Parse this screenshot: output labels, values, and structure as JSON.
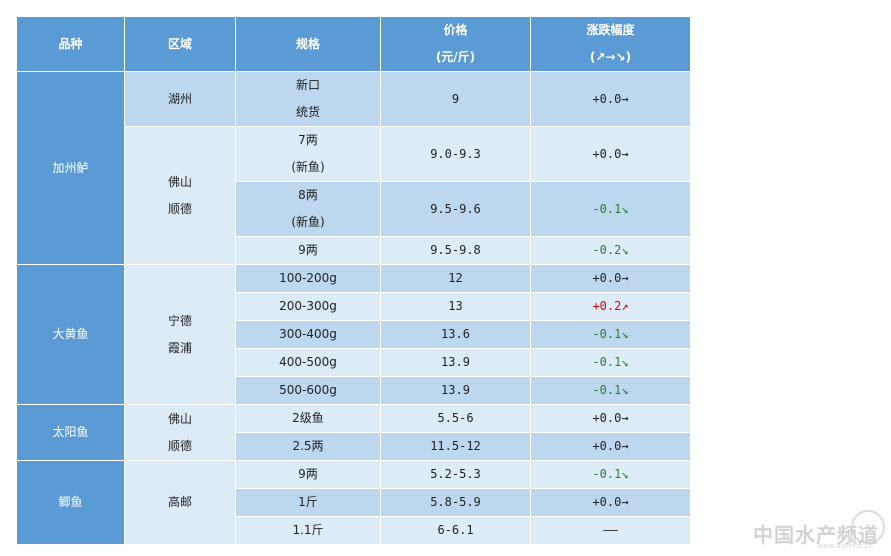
{
  "header": {
    "col1": "品种",
    "col2": "区域",
    "col3": "规格",
    "col4_line1": "价格",
    "col4_line2": "(元/斤)",
    "col5_line1": "涨跌幅度",
    "col5_line2": "(↗→↘)"
  },
  "groups": [
    {
      "species": "加州鲈",
      "regions": [
        {
          "lines": [
            "湖州"
          ],
          "rows": [
            {
              "spec": [
                "新口",
                "统货"
              ],
              "price": "9",
              "change": "+0.0→",
              "trend": "flat"
            }
          ]
        },
        {
          "lines": [
            "佛山",
            "顺德"
          ],
          "rows": [
            {
              "spec": [
                "7两",
                "(新鱼)"
              ],
              "price": "9.0-9.3",
              "change": "+0.0→",
              "trend": "flat"
            },
            {
              "spec": [
                "8两",
                "(新鱼)"
              ],
              "price": "9.5-9.6",
              "change": "-0.1↘",
              "trend": "down"
            },
            {
              "spec": [
                "9两"
              ],
              "price": "9.5-9.8",
              "change": "-0.2↘",
              "trend": "down"
            }
          ]
        }
      ]
    },
    {
      "species": "大黄鱼",
      "regions": [
        {
          "lines": [
            "宁德",
            "霞浦"
          ],
          "rows": [
            {
              "spec": [
                "100-200g"
              ],
              "price": "12",
              "change": "+0.0→",
              "trend": "flat"
            },
            {
              "spec": [
                "200-300g"
              ],
              "price": "13",
              "change": "+0.2↗",
              "trend": "up"
            },
            {
              "spec": [
                "300-400g"
              ],
              "price": "13.6",
              "change": "-0.1↘",
              "trend": "down"
            },
            {
              "spec": [
                "400-500g"
              ],
              "price": "13.9",
              "change": "-0.1↘",
              "trend": "down"
            },
            {
              "spec": [
                "500-600g"
              ],
              "price": "13.9",
              "change": "-0.1↘",
              "trend": "down"
            }
          ]
        }
      ]
    },
    {
      "species": "太阳鱼",
      "regions": [
        {
          "lines": [
            "佛山",
            "顺德"
          ],
          "rows": [
            {
              "spec": [
                "2级鱼"
              ],
              "price": "5.5-6",
              "change": "+0.0→",
              "trend": "flat"
            },
            {
              "spec": [
                "2.5两"
              ],
              "price": "11.5-12",
              "change": "+0.0→",
              "trend": "flat"
            }
          ]
        }
      ]
    },
    {
      "species": "鲫鱼",
      "regions": [
        {
          "lines": [
            "高邮"
          ],
          "rows": [
            {
              "spec": [
                "9两"
              ],
              "price": "5.2-5.3",
              "change": "-0.1↘",
              "trend": "down"
            },
            {
              "spec": [
                "1斤"
              ],
              "price": "5.8-5.9",
              "change": "+0.0→",
              "trend": "flat"
            },
            {
              "spec": [
                "1.1斤"
              ],
              "price": "6-6.1",
              "change": "——",
              "trend": "flat"
            }
          ]
        }
      ]
    }
  ],
  "watermark": {
    "text": "中国水产频道",
    "sub": "www.fishfirst.cn"
  },
  "colors": {
    "header": "#5b9bd5",
    "species": "#5b9bd5",
    "row_dark": "#bdd7ee",
    "row_light": "#ddebf7",
    "up": "#e00000",
    "down": "#2e7d32"
  }
}
